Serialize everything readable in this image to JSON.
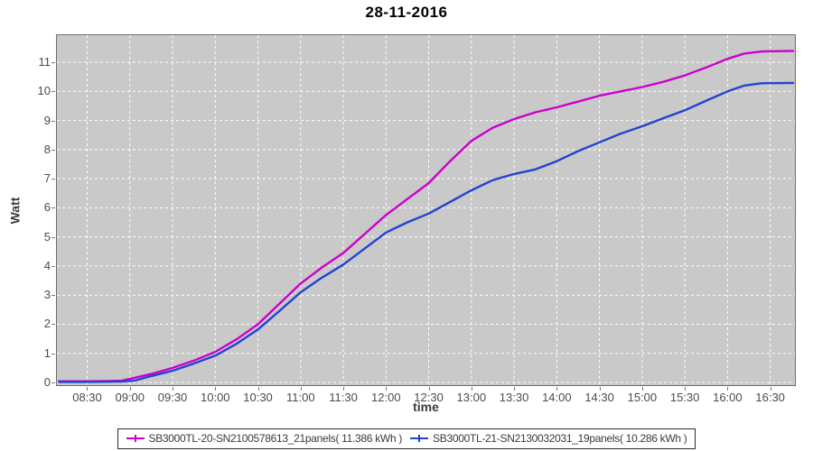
{
  "title": "28-11-2016",
  "colors": {
    "plot_bg": "#c9c9c9",
    "plot_border": "#6e6e6e",
    "grid": "#ffffff",
    "series1": "#cc00cc",
    "series2": "#2343d0",
    "tick_text": "#4b4b4b",
    "axis_label_text": "#3c3c3c"
  },
  "chart_data": {
    "type": "line",
    "title": "28-11-2016",
    "xlabel": "time",
    "ylabel": "Watt",
    "grid": true,
    "legend_position": "bottom",
    "x_ticklabels": [
      "08:30",
      "09:00",
      "09:30",
      "10:00",
      "10:30",
      "11:00",
      "11:30",
      "12:00",
      "12:30",
      "13:00",
      "13:30",
      "14:00",
      "14:30",
      "15:00",
      "15:30",
      "16:00",
      "16:30"
    ],
    "y_ticks": [
      0,
      1,
      2,
      3,
      4,
      5,
      6,
      7,
      8,
      9,
      10,
      11
    ],
    "xlim_hours": [
      8.135,
      16.8
    ],
    "ylim": [
      -0.13,
      11.95
    ],
    "series": [
      {
        "name": "SB3000TL-20-SN2100578613_21panels( 11.386 kWh )",
        "color_key": "series1",
        "points": [
          [
            8.17,
            0.04
          ],
          [
            8.5,
            0.04
          ],
          [
            8.75,
            0.05
          ],
          [
            8.9,
            0.06
          ],
          [
            9.0,
            0.12
          ],
          [
            9.25,
            0.29
          ],
          [
            9.5,
            0.5
          ],
          [
            9.75,
            0.75
          ],
          [
            10.0,
            1.05
          ],
          [
            10.25,
            1.48
          ],
          [
            10.5,
            2.0
          ],
          [
            10.75,
            2.7
          ],
          [
            11.0,
            3.4
          ],
          [
            11.25,
            3.95
          ],
          [
            11.5,
            4.45
          ],
          [
            11.75,
            5.1
          ],
          [
            12.0,
            5.75
          ],
          [
            12.25,
            6.3
          ],
          [
            12.5,
            6.85
          ],
          [
            12.75,
            7.6
          ],
          [
            13.0,
            8.3
          ],
          [
            13.25,
            8.75
          ],
          [
            13.5,
            9.05
          ],
          [
            13.75,
            9.28
          ],
          [
            14.0,
            9.45
          ],
          [
            14.25,
            9.65
          ],
          [
            14.5,
            9.85
          ],
          [
            14.75,
            10.0
          ],
          [
            15.0,
            10.15
          ],
          [
            15.25,
            10.33
          ],
          [
            15.5,
            10.55
          ],
          [
            15.75,
            10.82
          ],
          [
            16.0,
            11.12
          ],
          [
            16.2,
            11.3
          ],
          [
            16.4,
            11.37
          ],
          [
            16.77,
            11.39
          ]
        ]
      },
      {
        "name": "SB3000TL-21-SN2130032031_19panels( 10.286 kWh )",
        "color_key": "series2",
        "points": [
          [
            8.17,
            0.02
          ],
          [
            8.5,
            0.02
          ],
          [
            8.9,
            0.03
          ],
          [
            9.05,
            0.06
          ],
          [
            9.25,
            0.22
          ],
          [
            9.5,
            0.4
          ],
          [
            9.75,
            0.65
          ],
          [
            10.0,
            0.92
          ],
          [
            10.25,
            1.33
          ],
          [
            10.5,
            1.82
          ],
          [
            10.75,
            2.45
          ],
          [
            11.0,
            3.1
          ],
          [
            11.25,
            3.6
          ],
          [
            11.5,
            4.05
          ],
          [
            11.75,
            4.6
          ],
          [
            12.0,
            5.15
          ],
          [
            12.25,
            5.5
          ],
          [
            12.5,
            5.8
          ],
          [
            12.75,
            6.2
          ],
          [
            13.0,
            6.6
          ],
          [
            13.25,
            6.95
          ],
          [
            13.5,
            7.16
          ],
          [
            13.75,
            7.32
          ],
          [
            14.0,
            7.6
          ],
          [
            14.25,
            7.95
          ],
          [
            14.5,
            8.25
          ],
          [
            14.75,
            8.55
          ],
          [
            15.0,
            8.8
          ],
          [
            15.25,
            9.08
          ],
          [
            15.5,
            9.35
          ],
          [
            15.75,
            9.68
          ],
          [
            16.0,
            10.0
          ],
          [
            16.2,
            10.2
          ],
          [
            16.4,
            10.28
          ],
          [
            16.77,
            10.29
          ]
        ]
      }
    ]
  }
}
